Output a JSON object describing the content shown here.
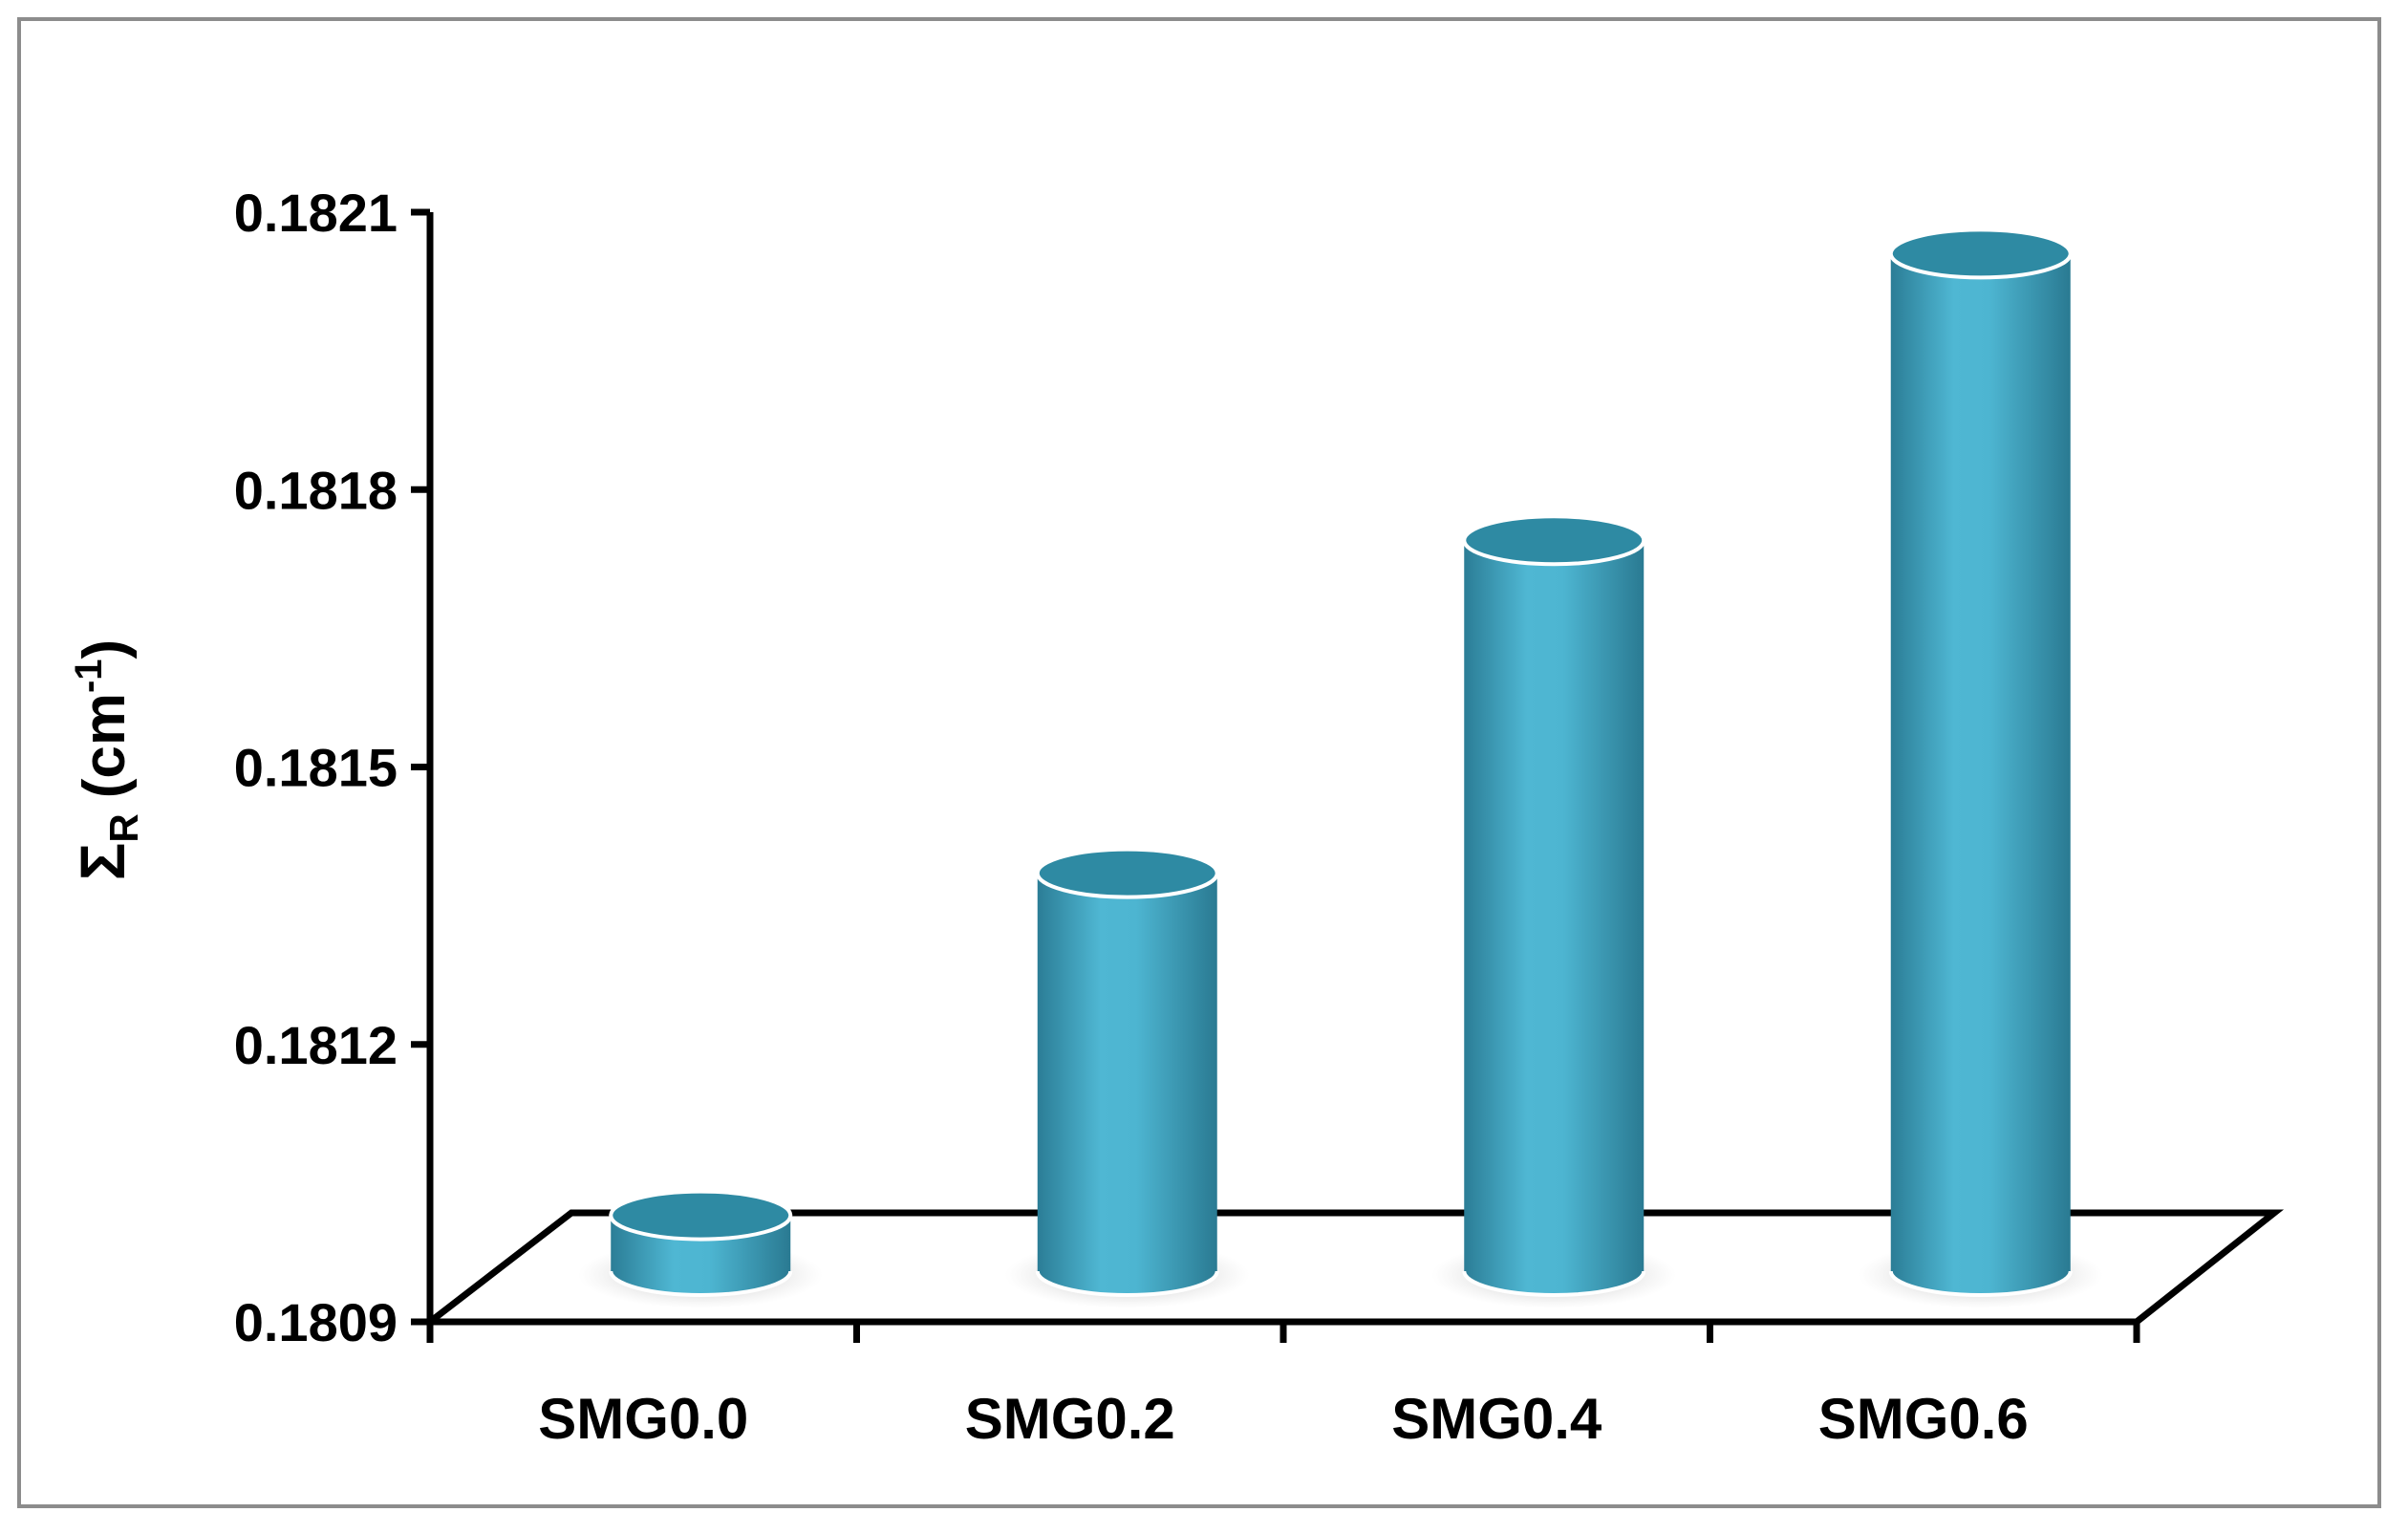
{
  "chart_data": {
    "type": "bar",
    "style": "3d-cylinder",
    "categories": [
      "SMG0.0",
      "SMG0.2",
      "SMG0.4",
      "SMG0.6"
    ],
    "series": [
      {
        "values": [
          0.18101,
          0.18138,
          0.18174,
          0.18205
        ]
      }
    ],
    "xlabel": "",
    "ylabel": {
      "symbol": "Σ",
      "subscript": "R",
      "unit_prefix": "(cm",
      "unit_superscript": "-1",
      "unit_suffix": ")"
    },
    "ylim": [
      0.1809,
      0.1821
    ],
    "yticks": [
      "0.1809",
      "0.1812",
      "0.1815",
      "0.1818",
      "0.1821"
    ],
    "grid": false,
    "legend": "none",
    "colors": {
      "bar_light": "#4db5d1",
      "bar_mid": "#3a9ab5",
      "bar_dark": "#2b7d96",
      "bar_top": "#2e8aa3",
      "axis": "#000000",
      "frame": "#8c8c8c"
    }
  }
}
